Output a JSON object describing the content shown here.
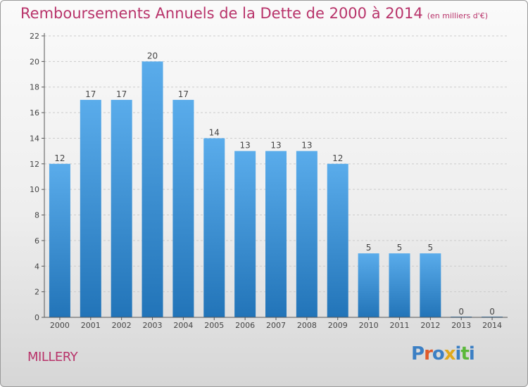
{
  "title": "Remboursements Annuels de la Dette de 2000 à 2014",
  "subtitle": "(en milliers d'€)",
  "commune": "MILLERY",
  "logo_text": "Proxiti",
  "colors": {
    "title": "#b8336a",
    "bar_top": "#5aaceb",
    "bar_bottom": "#2274b8",
    "grid": "#cccccc",
    "axis": "#555555",
    "logo": [
      "#3b7fc4",
      "#e05a2a",
      "#3b7fc4",
      "#e0a91c",
      "#3b7fc4",
      "#5bb83a",
      "#3b7fc4"
    ]
  },
  "chart_data": {
    "type": "bar",
    "categories": [
      "2000",
      "2001",
      "2002",
      "2003",
      "2004",
      "2005",
      "2006",
      "2007",
      "2008",
      "2009",
      "2010",
      "2011",
      "2012",
      "2013",
      "2014"
    ],
    "values": [
      12,
      17,
      17,
      20,
      17,
      14,
      13,
      13,
      13,
      12,
      5,
      5,
      5,
      0,
      0
    ],
    "title": "Remboursements Annuels de la Dette de 2000 à 2014",
    "subtitle": "(en milliers d'€)",
    "xlabel": "",
    "ylabel": "",
    "ylim": [
      0,
      22
    ],
    "yticks": [
      0,
      2,
      4,
      6,
      8,
      10,
      12,
      14,
      16,
      18,
      20,
      22
    ],
    "grid": "horizontal dashed",
    "legend": "none"
  }
}
